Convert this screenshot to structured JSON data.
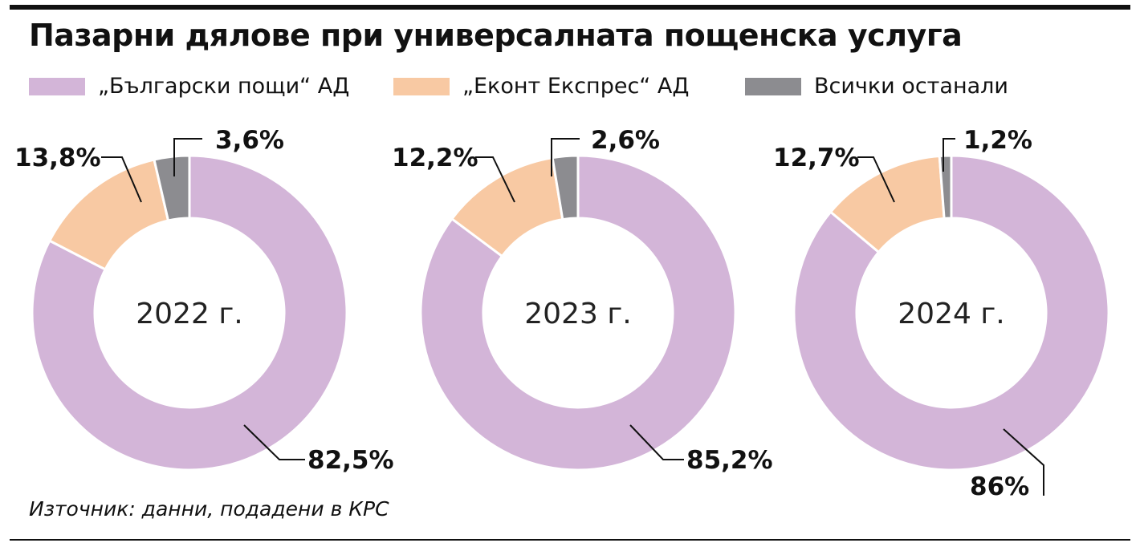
{
  "title": "Пазарни дялове при универсалната пощенска услуга",
  "legend": [
    {
      "label": "„Български пощи“ АД",
      "color": "#d3b5d8"
    },
    {
      "label": "„Еконт Експрес“ АД",
      "color": "#f8c9a3"
    },
    {
      "label": "Всички останали",
      "color": "#8c8c90"
    }
  ],
  "source": "Източник: данни, подадени в КРС",
  "chart_data": {
    "type": "pie",
    "series_names": [
      "„Български пощи“ АД",
      "„Еконт Експрес“ АД",
      "Всички останали"
    ],
    "colors": [
      "#d3b5d8",
      "#f8c9a3",
      "#8c8c90"
    ],
    "charts": [
      {
        "center_label": "2022 г.",
        "values": [
          82.5,
          13.8,
          3.6
        ],
        "labels": [
          "82,5%",
          "13,8%",
          "3,6%"
        ]
      },
      {
        "center_label": "2023 г.",
        "values": [
          85.2,
          12.2,
          2.6
        ],
        "labels": [
          "85,2%",
          "12,2%",
          "2,6%"
        ]
      },
      {
        "center_label": "2024 г.",
        "values": [
          86,
          12.7,
          1.2
        ],
        "labels": [
          "86%",
          "12,7%",
          "1,2%"
        ]
      }
    ]
  }
}
